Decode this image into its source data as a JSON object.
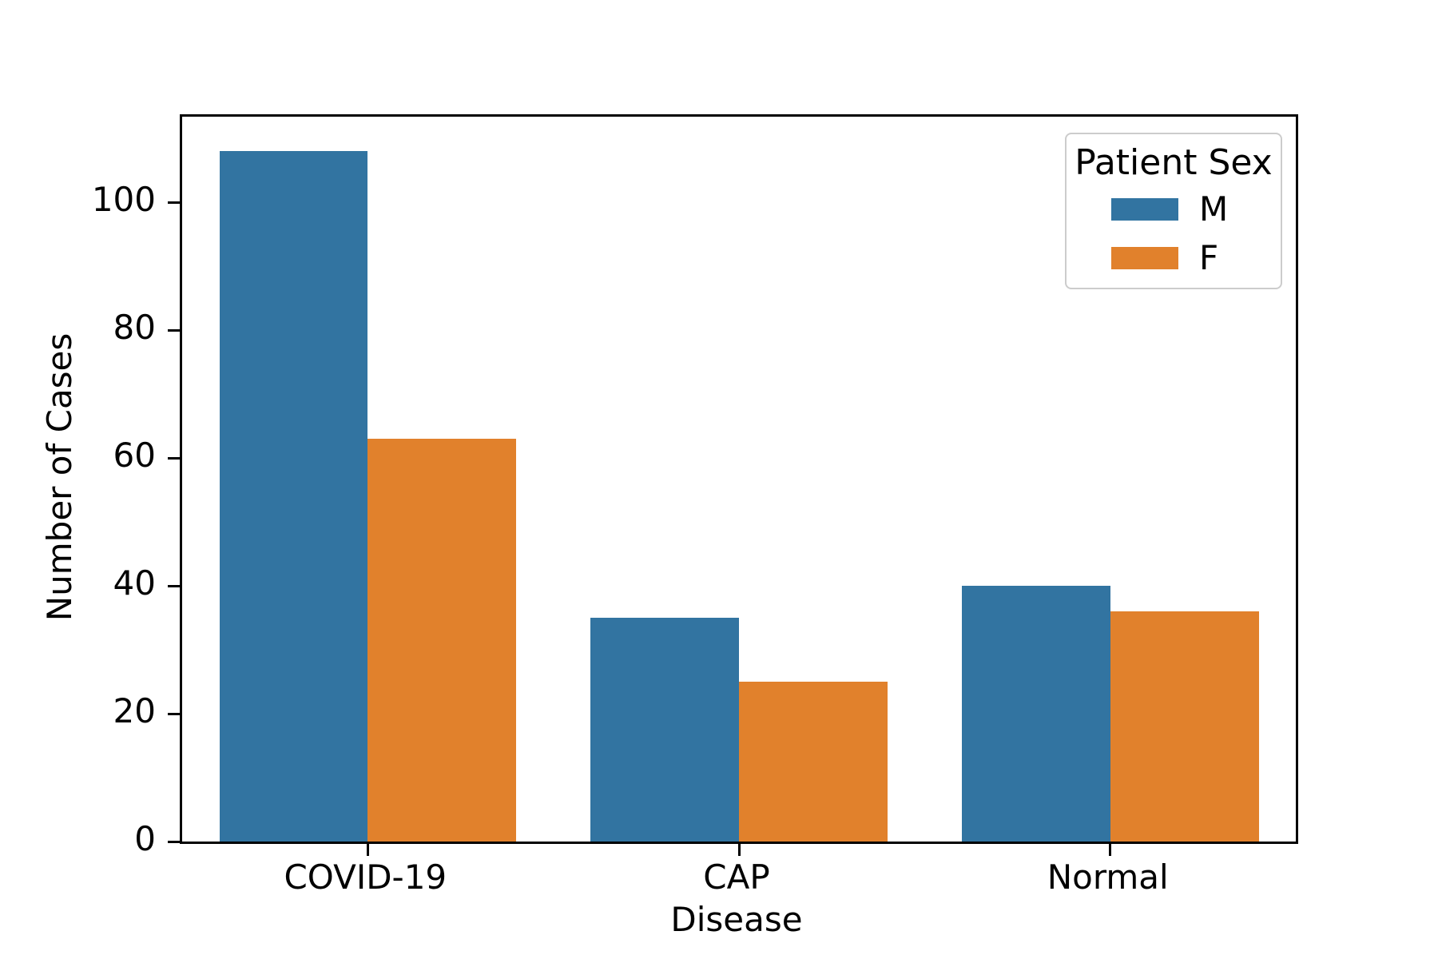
{
  "chart_data": {
    "type": "bar",
    "title": "",
    "xlabel": "Disease",
    "ylabel": "Number of Cases",
    "categories": [
      "COVID-19",
      "CAP",
      "Normal"
    ],
    "series": [
      {
        "name": "M",
        "color": "#3274a1",
        "values": [
          108,
          35,
          40
        ]
      },
      {
        "name": "F",
        "color": "#e1812c",
        "values": [
          63,
          25,
          36
        ]
      }
    ],
    "legend": {
      "title": "Patient Sex",
      "entries": [
        "M",
        "F"
      ],
      "position": "upper-right"
    },
    "axes": {
      "y_ticks": [
        0,
        20,
        40,
        60,
        80,
        100
      ],
      "ylim": [
        0,
        113.4
      ],
      "xlim_units": [
        -0.5,
        2.5
      ],
      "grid": false,
      "bar_group_width": 0.8
    }
  }
}
